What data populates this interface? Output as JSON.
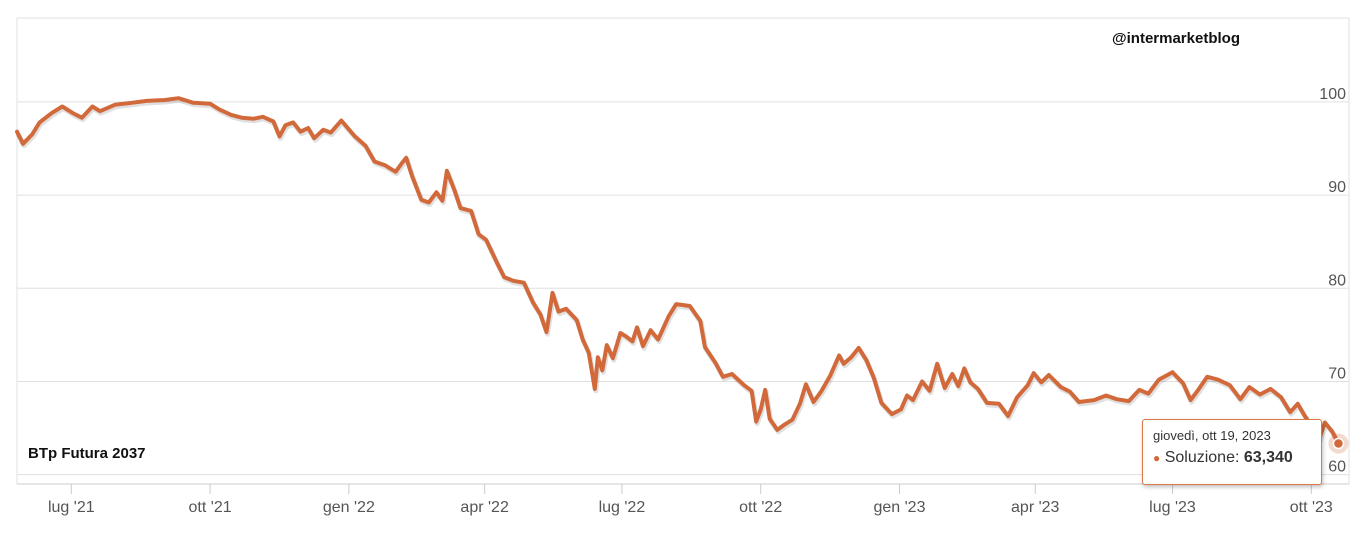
{
  "watermark": "@intermarketblog",
  "series_label": "BTp Futura 2037",
  "tooltip": {
    "date": "giovedì, ott 19, 2023",
    "series": "Soluzione",
    "value": "63,340"
  },
  "colors": {
    "line": "#d2693a",
    "grid": "#e0e0e0",
    "axis": "#cccccc",
    "text": "#555555",
    "tooltip_border": "#d97a46"
  },
  "chart_data": {
    "type": "line",
    "title": "",
    "xlabel": "",
    "ylabel": "",
    "ylim": [
      59,
      109
    ],
    "xlim": [
      "2021-05-26",
      "2023-10-26"
    ],
    "y_ticks": [
      60,
      70,
      80,
      90,
      100
    ],
    "x_ticks": [
      {
        "date": "2021-07-01",
        "label": "lug '21"
      },
      {
        "date": "2021-10-01",
        "label": "ott '21"
      },
      {
        "date": "2022-01-01",
        "label": "gen '22"
      },
      {
        "date": "2022-04-01",
        "label": "apr '22"
      },
      {
        "date": "2022-07-01",
        "label": "lug '22"
      },
      {
        "date": "2022-10-01",
        "label": "ott '22"
      },
      {
        "date": "2023-01-01",
        "label": "gen '23"
      },
      {
        "date": "2023-04-01",
        "label": "apr '23"
      },
      {
        "date": "2023-07-01",
        "label": "lug '23"
      },
      {
        "date": "2023-10-01",
        "label": "ott '23"
      }
    ],
    "grid": true,
    "legend": "none",
    "series": [
      {
        "name": "Soluzione",
        "points": [
          [
            "2021-05-26",
            96.8
          ],
          [
            "2021-05-30",
            95.5
          ],
          [
            "2021-06-05",
            96.5
          ],
          [
            "2021-06-10",
            97.8
          ],
          [
            "2021-06-18",
            98.8
          ],
          [
            "2021-06-25",
            99.5
          ],
          [
            "2021-07-02",
            98.8
          ],
          [
            "2021-07-08",
            98.3
          ],
          [
            "2021-07-15",
            99.5
          ],
          [
            "2021-07-20",
            99.0
          ],
          [
            "2021-07-30",
            99.7
          ],
          [
            "2021-08-10",
            99.9
          ],
          [
            "2021-08-20",
            100.1
          ],
          [
            "2021-09-01",
            100.2
          ],
          [
            "2021-09-10",
            100.4
          ],
          [
            "2021-09-20",
            99.9
          ],
          [
            "2021-10-01",
            99.8
          ],
          [
            "2021-10-07",
            99.2
          ],
          [
            "2021-10-15",
            98.6
          ],
          [
            "2021-10-22",
            98.3
          ],
          [
            "2021-10-30",
            98.2
          ],
          [
            "2021-11-05",
            98.4
          ],
          [
            "2021-11-12",
            97.9
          ],
          [
            "2021-11-16",
            96.3
          ],
          [
            "2021-11-20",
            97.5
          ],
          [
            "2021-11-25",
            97.8
          ],
          [
            "2021-11-30",
            96.8
          ],
          [
            "2021-12-05",
            97.2
          ],
          [
            "2021-12-09",
            96.1
          ],
          [
            "2021-12-15",
            97.0
          ],
          [
            "2021-12-20",
            96.7
          ],
          [
            "2021-12-27",
            98.0
          ],
          [
            "2022-01-05",
            96.3
          ],
          [
            "2022-01-12",
            95.3
          ],
          [
            "2022-01-18",
            93.6
          ],
          [
            "2022-01-25",
            93.2
          ],
          [
            "2022-02-01",
            92.5
          ],
          [
            "2022-02-05",
            93.4
          ],
          [
            "2022-02-08",
            94.0
          ],
          [
            "2022-02-12",
            92.0
          ],
          [
            "2022-02-18",
            89.5
          ],
          [
            "2022-02-23",
            89.2
          ],
          [
            "2022-02-28",
            90.3
          ],
          [
            "2022-03-04",
            89.4
          ],
          [
            "2022-03-07",
            92.6
          ],
          [
            "2022-03-12",
            90.5
          ],
          [
            "2022-03-16",
            88.6
          ],
          [
            "2022-03-23",
            88.3
          ],
          [
            "2022-03-28",
            85.8
          ],
          [
            "2022-04-02",
            85.2
          ],
          [
            "2022-04-09",
            82.8
          ],
          [
            "2022-04-14",
            81.2
          ],
          [
            "2022-04-20",
            80.8
          ],
          [
            "2022-04-27",
            80.6
          ],
          [
            "2022-05-03",
            78.5
          ],
          [
            "2022-05-08",
            77.2
          ],
          [
            "2022-05-12",
            75.3
          ],
          [
            "2022-05-16",
            79.5
          ],
          [
            "2022-05-20",
            77.5
          ],
          [
            "2022-05-25",
            77.8
          ],
          [
            "2022-06-01",
            76.6
          ],
          [
            "2022-06-05",
            74.5
          ],
          [
            "2022-06-09",
            73.1
          ],
          [
            "2022-06-13",
            69.2
          ],
          [
            "2022-06-15",
            72.6
          ],
          [
            "2022-06-18",
            71.2
          ],
          [
            "2022-06-21",
            73.9
          ],
          [
            "2022-06-25",
            72.5
          ],
          [
            "2022-06-30",
            75.2
          ],
          [
            "2022-07-04",
            74.8
          ],
          [
            "2022-07-08",
            74.3
          ],
          [
            "2022-07-11",
            75.8
          ],
          [
            "2022-07-15",
            73.8
          ],
          [
            "2022-07-20",
            75.5
          ],
          [
            "2022-07-25",
            74.5
          ],
          [
            "2022-08-01",
            77.0
          ],
          [
            "2022-08-06",
            78.3
          ],
          [
            "2022-08-15",
            78.1
          ],
          [
            "2022-08-22",
            76.5
          ],
          [
            "2022-08-25",
            73.7
          ],
          [
            "2022-09-01",
            72.0
          ],
          [
            "2022-09-06",
            70.5
          ],
          [
            "2022-09-12",
            70.8
          ],
          [
            "2022-09-20",
            69.6
          ],
          [
            "2022-09-25",
            69.0
          ],
          [
            "2022-09-28",
            65.7
          ],
          [
            "2022-10-01",
            67.0
          ],
          [
            "2022-10-04",
            69.1
          ],
          [
            "2022-10-07",
            66.0
          ],
          [
            "2022-10-12",
            64.8
          ],
          [
            "2022-10-17",
            65.4
          ],
          [
            "2022-10-22",
            65.9
          ],
          [
            "2022-10-27",
            67.6
          ],
          [
            "2022-10-31",
            69.7
          ],
          [
            "2022-11-05",
            67.8
          ],
          [
            "2022-11-10",
            68.9
          ],
          [
            "2022-11-16",
            70.6
          ],
          [
            "2022-11-22",
            72.8
          ],
          [
            "2022-11-25",
            71.9
          ],
          [
            "2022-11-30",
            72.6
          ],
          [
            "2022-12-05",
            73.6
          ],
          [
            "2022-12-10",
            72.3
          ],
          [
            "2022-12-15",
            70.4
          ],
          [
            "2022-12-20",
            67.7
          ],
          [
            "2022-12-27",
            66.5
          ],
          [
            "2023-01-02",
            67.0
          ],
          [
            "2023-01-06",
            68.5
          ],
          [
            "2023-01-10",
            68.0
          ],
          [
            "2023-01-16",
            70.0
          ],
          [
            "2023-01-21",
            69.0
          ],
          [
            "2023-01-26",
            71.9
          ],
          [
            "2023-01-31",
            69.3
          ],
          [
            "2023-02-05",
            70.8
          ],
          [
            "2023-02-09",
            69.5
          ],
          [
            "2023-02-13",
            71.4
          ],
          [
            "2023-02-17",
            69.9
          ],
          [
            "2023-02-22",
            69.2
          ],
          [
            "2023-02-28",
            67.7
          ],
          [
            "2023-03-08",
            67.6
          ],
          [
            "2023-03-14",
            66.3
          ],
          [
            "2023-03-20",
            68.3
          ],
          [
            "2023-03-27",
            69.6
          ],
          [
            "2023-03-31",
            70.9
          ],
          [
            "2023-04-05",
            69.9
          ],
          [
            "2023-04-10",
            70.7
          ],
          [
            "2023-04-18",
            69.4
          ],
          [
            "2023-04-24",
            68.9
          ],
          [
            "2023-04-30",
            67.8
          ],
          [
            "2023-05-10",
            68.0
          ],
          [
            "2023-05-18",
            68.5
          ],
          [
            "2023-05-25",
            68.1
          ],
          [
            "2023-06-02",
            67.9
          ],
          [
            "2023-06-09",
            69.1
          ],
          [
            "2023-06-15",
            68.7
          ],
          [
            "2023-06-22",
            70.2
          ],
          [
            "2023-07-01",
            71.0
          ],
          [
            "2023-07-08",
            69.8
          ],
          [
            "2023-07-13",
            68.0
          ],
          [
            "2023-07-18",
            69.1
          ],
          [
            "2023-07-24",
            70.5
          ],
          [
            "2023-07-31",
            70.2
          ],
          [
            "2023-08-08",
            69.6
          ],
          [
            "2023-08-15",
            68.1
          ],
          [
            "2023-08-21",
            69.4
          ],
          [
            "2023-08-28",
            68.6
          ],
          [
            "2023-09-04",
            69.2
          ],
          [
            "2023-09-11",
            68.3
          ],
          [
            "2023-09-17",
            66.7
          ],
          [
            "2023-09-22",
            67.6
          ],
          [
            "2023-09-26",
            66.5
          ],
          [
            "2023-10-02",
            65.0
          ],
          [
            "2023-10-06",
            63.7
          ],
          [
            "2023-10-10",
            65.6
          ],
          [
            "2023-10-15",
            64.6
          ],
          [
            "2023-10-19",
            63.34
          ]
        ]
      }
    ]
  }
}
